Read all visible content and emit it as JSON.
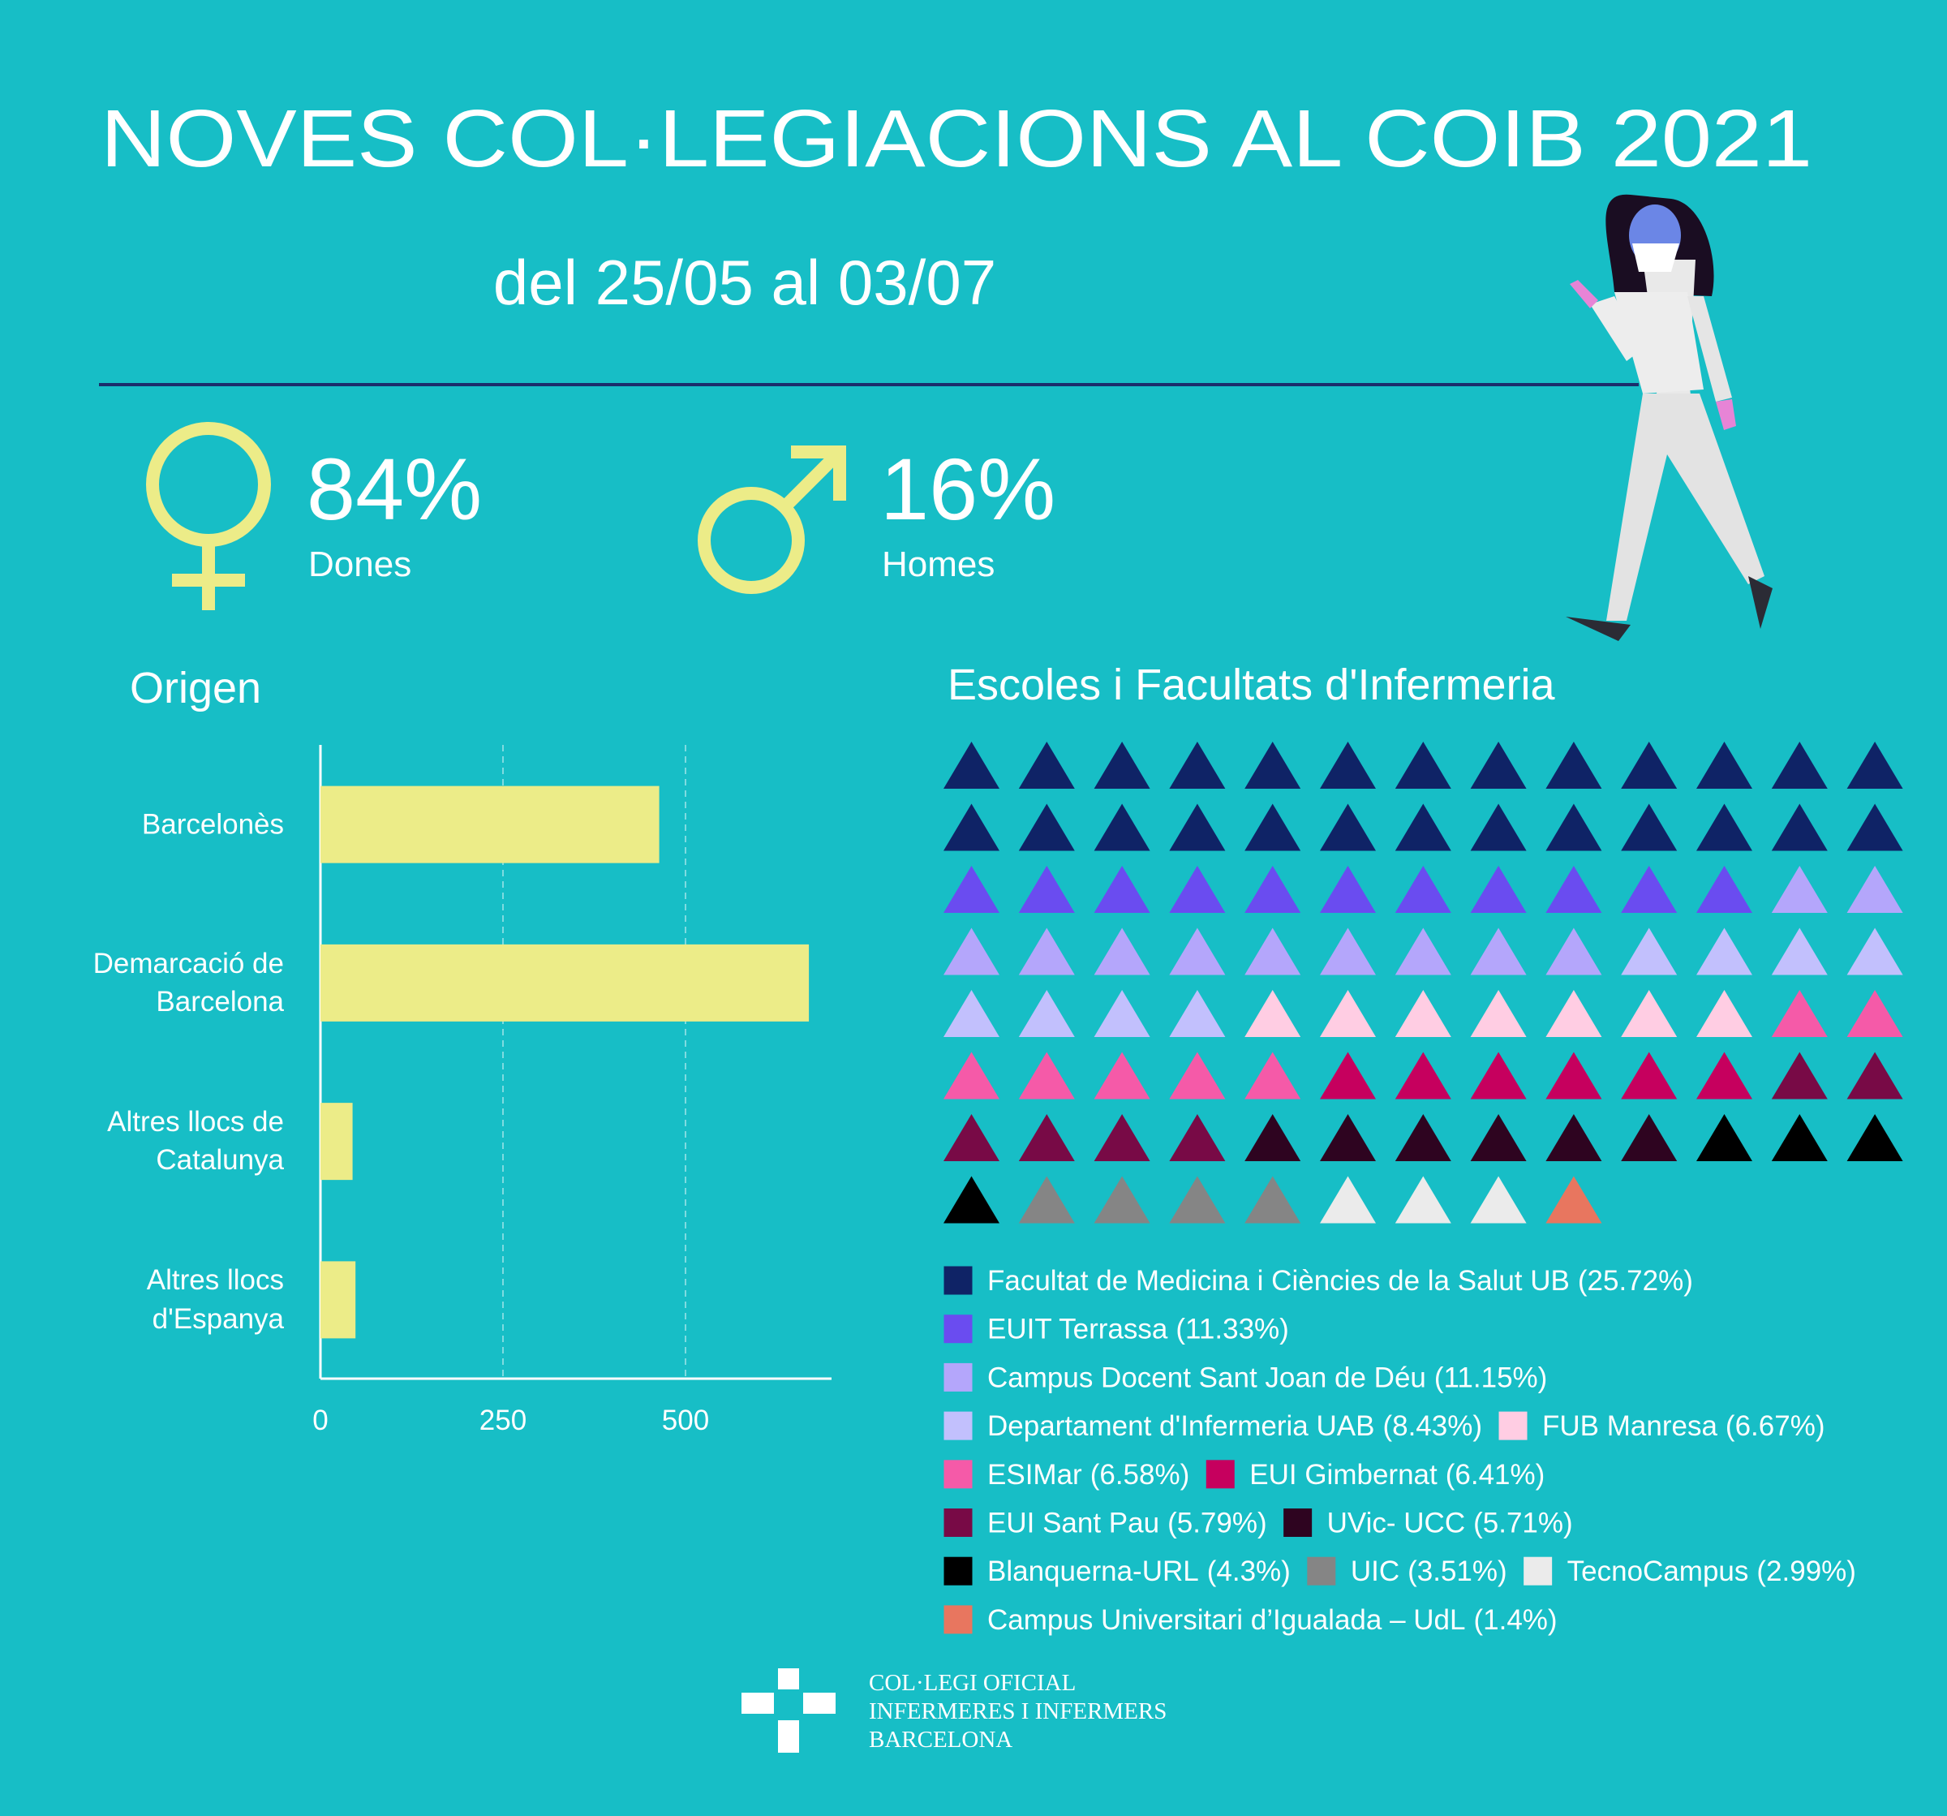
{
  "header": {
    "title": "NOVES COL·LEGIACIONS AL COIB 2021",
    "subtitle": "del 25/05 al 03/07"
  },
  "stats": [
    {
      "value": "84%",
      "label": "Dones"
    },
    {
      "value": "16%",
      "label": "Homes"
    }
  ],
  "chart_data": [
    {
      "type": "bar",
      "orientation": "horizontal",
      "title": "Origen",
      "categories": [
        "Barcelonès",
        "Demarcació de Barcelona",
        "Altres llocs de Catalunya",
        "Altres llocs d'Espanya"
      ],
      "values": [
        464,
        669,
        44,
        48
      ],
      "color": "#ecec88",
      "xlim": [
        0,
        700
      ],
      "xticks": [
        0,
        250,
        500
      ],
      "grid": true
    },
    {
      "type": "waffle",
      "title": "Escoles i Facultats d'Infermeria",
      "categories": [
        "Facultat de Medicina i Ciències de la Salut UB",
        "EUIT Terrassa",
        "Campus Docent Sant Joan de Déu",
        "Departament d'Infermeria UAB",
        "FUB Manresa",
        "ESIMar",
        "EUI Gimbernat",
        "EUI Sant Pau",
        "UVic- UCC",
        "Blanquerna-URL",
        "UIC",
        "TecnoCampus",
        "Campus Universitari d’Igualada – UdL"
      ],
      "values": [
        25.72,
        11.33,
        11.15,
        8.43,
        6.67,
        6.58,
        6.41,
        5.79,
        5.71,
        4.3,
        3.51,
        2.99,
        1.4
      ],
      "value_labels": [
        "(25.72%)",
        "(11.33%)",
        "(11.15%)",
        "(8.43%)",
        "(6.67%)",
        "(6.58%)",
        "(6.41%)",
        "(5.79%)",
        "(5.71%)",
        "(4.3%)",
        "(3.51%)",
        "(2.99%)",
        "(1.4%)"
      ],
      "colors": [
        "#0f2366",
        "#6a4cf0",
        "#b4a6fb",
        "#c2c0fd",
        "#ffcde3",
        "#f55aa8",
        "#c6005e",
        "#780a46",
        "#2e0420",
        "#000000",
        "#858585",
        "#ebebeb",
        "#e8765f"
      ]
    }
  ],
  "footer": {
    "lines": [
      "COL·LEGI OFICIAL",
      "INFERMERES I INFERMERS",
      "BARCELONA"
    ]
  }
}
